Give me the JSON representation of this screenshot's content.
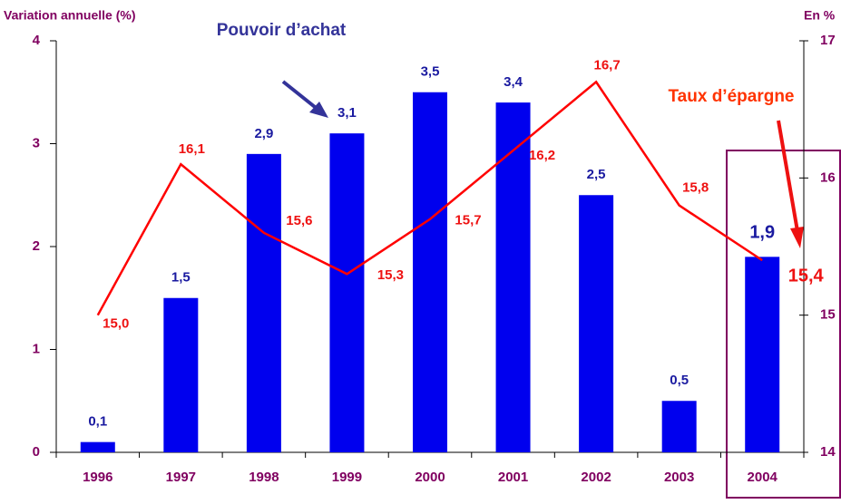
{
  "chart_data": {
    "type": "bar",
    "y_label": "Variation annuelle (%)",
    "y2_label": "En %",
    "annotations": [
      "Pouvoir d’achat",
      "Taux d’épargne"
    ],
    "categories": [
      "1996",
      "1997",
      "1998",
      "1999",
      "2000",
      "2001",
      "2002",
      "2003",
      "2004"
    ],
    "series": [
      {
        "name": "Pouvoir d’achat",
        "type": "bar",
        "color": "#0000ee",
        "values": [
          0.1,
          1.5,
          2.9,
          3.1,
          3.5,
          3.4,
          2.5,
          0.5,
          1.9
        ],
        "value_labels": [
          "0,1",
          "1,5",
          "2,9",
          "3,1",
          "3,5",
          "3,4",
          "2,5",
          "0,5",
          "1,9"
        ]
      },
      {
        "name": "Taux d’épargne",
        "type": "line",
        "axis": "y2",
        "color": "#ff0000",
        "values": [
          15.0,
          16.1,
          15.6,
          15.3,
          15.7,
          16.2,
          16.7,
          15.8,
          15.4
        ],
        "value_labels": [
          "15,0",
          "16,1",
          "15,6",
          "15,3",
          "15,7",
          "16,2",
          "16,7",
          "15,8",
          "15,4"
        ]
      }
    ],
    "ylim": [
      0,
      4
    ],
    "yticks": [
      0,
      1,
      2,
      3,
      4
    ],
    "y2lim": [
      14,
      17
    ],
    "y2ticks": [
      14,
      15,
      16,
      17
    ]
  }
}
